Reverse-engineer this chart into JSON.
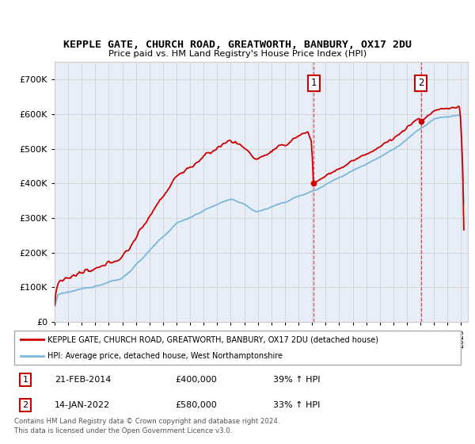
{
  "title": "KEPPLE GATE, CHURCH ROAD, GREATWORTH, BANBURY, OX17 2DU",
  "subtitle": "Price paid vs. HM Land Registry's House Price Index (HPI)",
  "legend_line1": "KEPPLE GATE, CHURCH ROAD, GREATWORTH, BANBURY, OX17 2DU (detached house)",
  "legend_line2": "HPI: Average price, detached house, West Northamptonshire",
  "annotation1_date": "21-FEB-2014",
  "annotation1_price": "£400,000",
  "annotation1_hpi": "39% ↑ HPI",
  "annotation2_date": "14-JAN-2022",
  "annotation2_price": "£580,000",
  "annotation2_hpi": "33% ↑ HPI",
  "footer": "Contains HM Land Registry data © Crown copyright and database right 2024.\nThis data is licensed under the Open Government Licence v3.0.",
  "vline1_year": 2014.13,
  "vline2_year": 2022.04,
  "sale1_price": 400000,
  "sale2_price": 580000,
  "red_color": "#cc0000",
  "blue_color": "#7ab8d9",
  "chart_bg": "#e8eef8",
  "grid_color": "#cccccc",
  "fig_bg": "#ffffff",
  "ylim": [
    0,
    750000
  ],
  "yticks": [
    0,
    100000,
    200000,
    300000,
    400000,
    500000,
    600000,
    700000
  ],
  "xmin": 1995,
  "xmax": 2025.5
}
